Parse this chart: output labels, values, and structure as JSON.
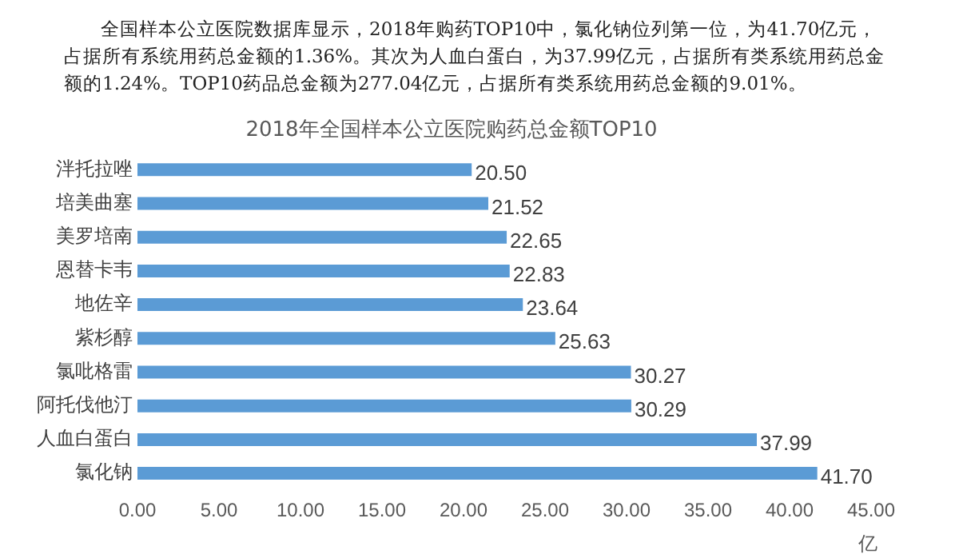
{
  "chart_data": {
    "type": "bar",
    "orientation": "horizontal",
    "title": "2018年全国样本公立医院购药总金额TOP10",
    "annotations": [
      "全国样本公立医院数据库显示，2018年购药TOP10中，氯化钠位列第一位，为41.70亿元，占据所有系统用药总金额的1.36%。其次为人血白蛋白，为37.99亿元，占据所有类系统用药总金额的1.24%。TOP10药品总金额为277.04亿元，占据所有类系统用药总金额的9.01%。"
    ],
    "xlabel": "亿",
    "categories": [
      "泮托拉唑",
      "培美曲塞",
      "美罗培南",
      "恩替卡韦",
      "地佐辛",
      "紫杉醇",
      "氯吡格雷",
      "阿托伐他汀",
      "人血白蛋白",
      "氯化钠"
    ],
    "values": [
      20.5,
      21.52,
      22.65,
      22.83,
      23.64,
      25.63,
      30.27,
      30.29,
      37.99,
      41.7
    ],
    "value_labels": [
      "20.50",
      "21.52",
      "22.65",
      "22.83",
      "23.64",
      "25.63",
      "30.27",
      "30.29",
      "37.99",
      "41.70"
    ],
    "color": "#5b9bd5",
    "xlim": [
      0,
      45
    ],
    "xticks": [
      {
        "value": 0,
        "label": "0.00"
      },
      {
        "value": 5,
        "label": "5.00"
      },
      {
        "value": 10,
        "label": "10.00"
      },
      {
        "value": 15,
        "label": "15.00"
      },
      {
        "value": 20,
        "label": "20.00"
      },
      {
        "value": 25,
        "label": "25.00"
      },
      {
        "value": 30,
        "label": "30.00"
      },
      {
        "value": 35,
        "label": "35.00"
      },
      {
        "value": 40,
        "label": "40.00"
      },
      {
        "value": 45,
        "label": "45.00"
      }
    ],
    "grid": false,
    "legend": false
  }
}
